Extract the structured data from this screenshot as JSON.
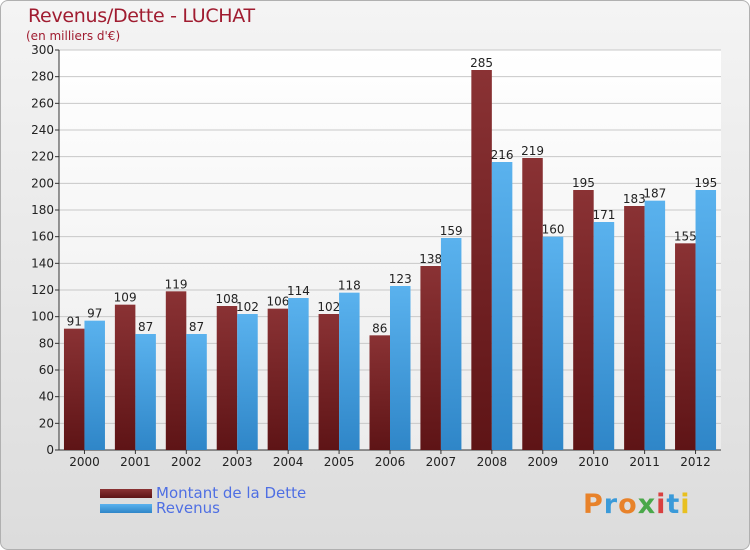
{
  "title": "Revenus/Dette - LUCHAT",
  "subtitle": "(en milliers d'€)",
  "logo": {
    "text": "Proxiti",
    "colors": [
      "#e8822a",
      "#3a9ad9",
      "#e8822a",
      "#4aa84a",
      "#d94040",
      "#3a9ad9",
      "#e8c020"
    ]
  },
  "colors": {
    "debt": "#7a2c2e",
    "revenue": "#3e9ee3",
    "axis_text": "#222222"
  },
  "chart_data": {
    "type": "bar",
    "categories": [
      "2000",
      "2001",
      "2002",
      "2003",
      "2004",
      "2005",
      "2006",
      "2007",
      "2008",
      "2009",
      "2010",
      "2011",
      "2012"
    ],
    "series": [
      {
        "name": "Montant de la Dette",
        "values": [
          91,
          109,
          119,
          108,
          106,
          102,
          86,
          138,
          285,
          219,
          195,
          183,
          155
        ]
      },
      {
        "name": "Revenus",
        "values": [
          97,
          87,
          87,
          102,
          114,
          118,
          123,
          159,
          216,
          160,
          171,
          187,
          195
        ]
      }
    ],
    "yticks": [
      0,
      20,
      40,
      60,
      80,
      100,
      120,
      140,
      160,
      180,
      200,
      220,
      240,
      260,
      280,
      300
    ],
    "ylim": [
      0,
      300
    ],
    "grid": true,
    "legend_position": "bottom-left"
  }
}
